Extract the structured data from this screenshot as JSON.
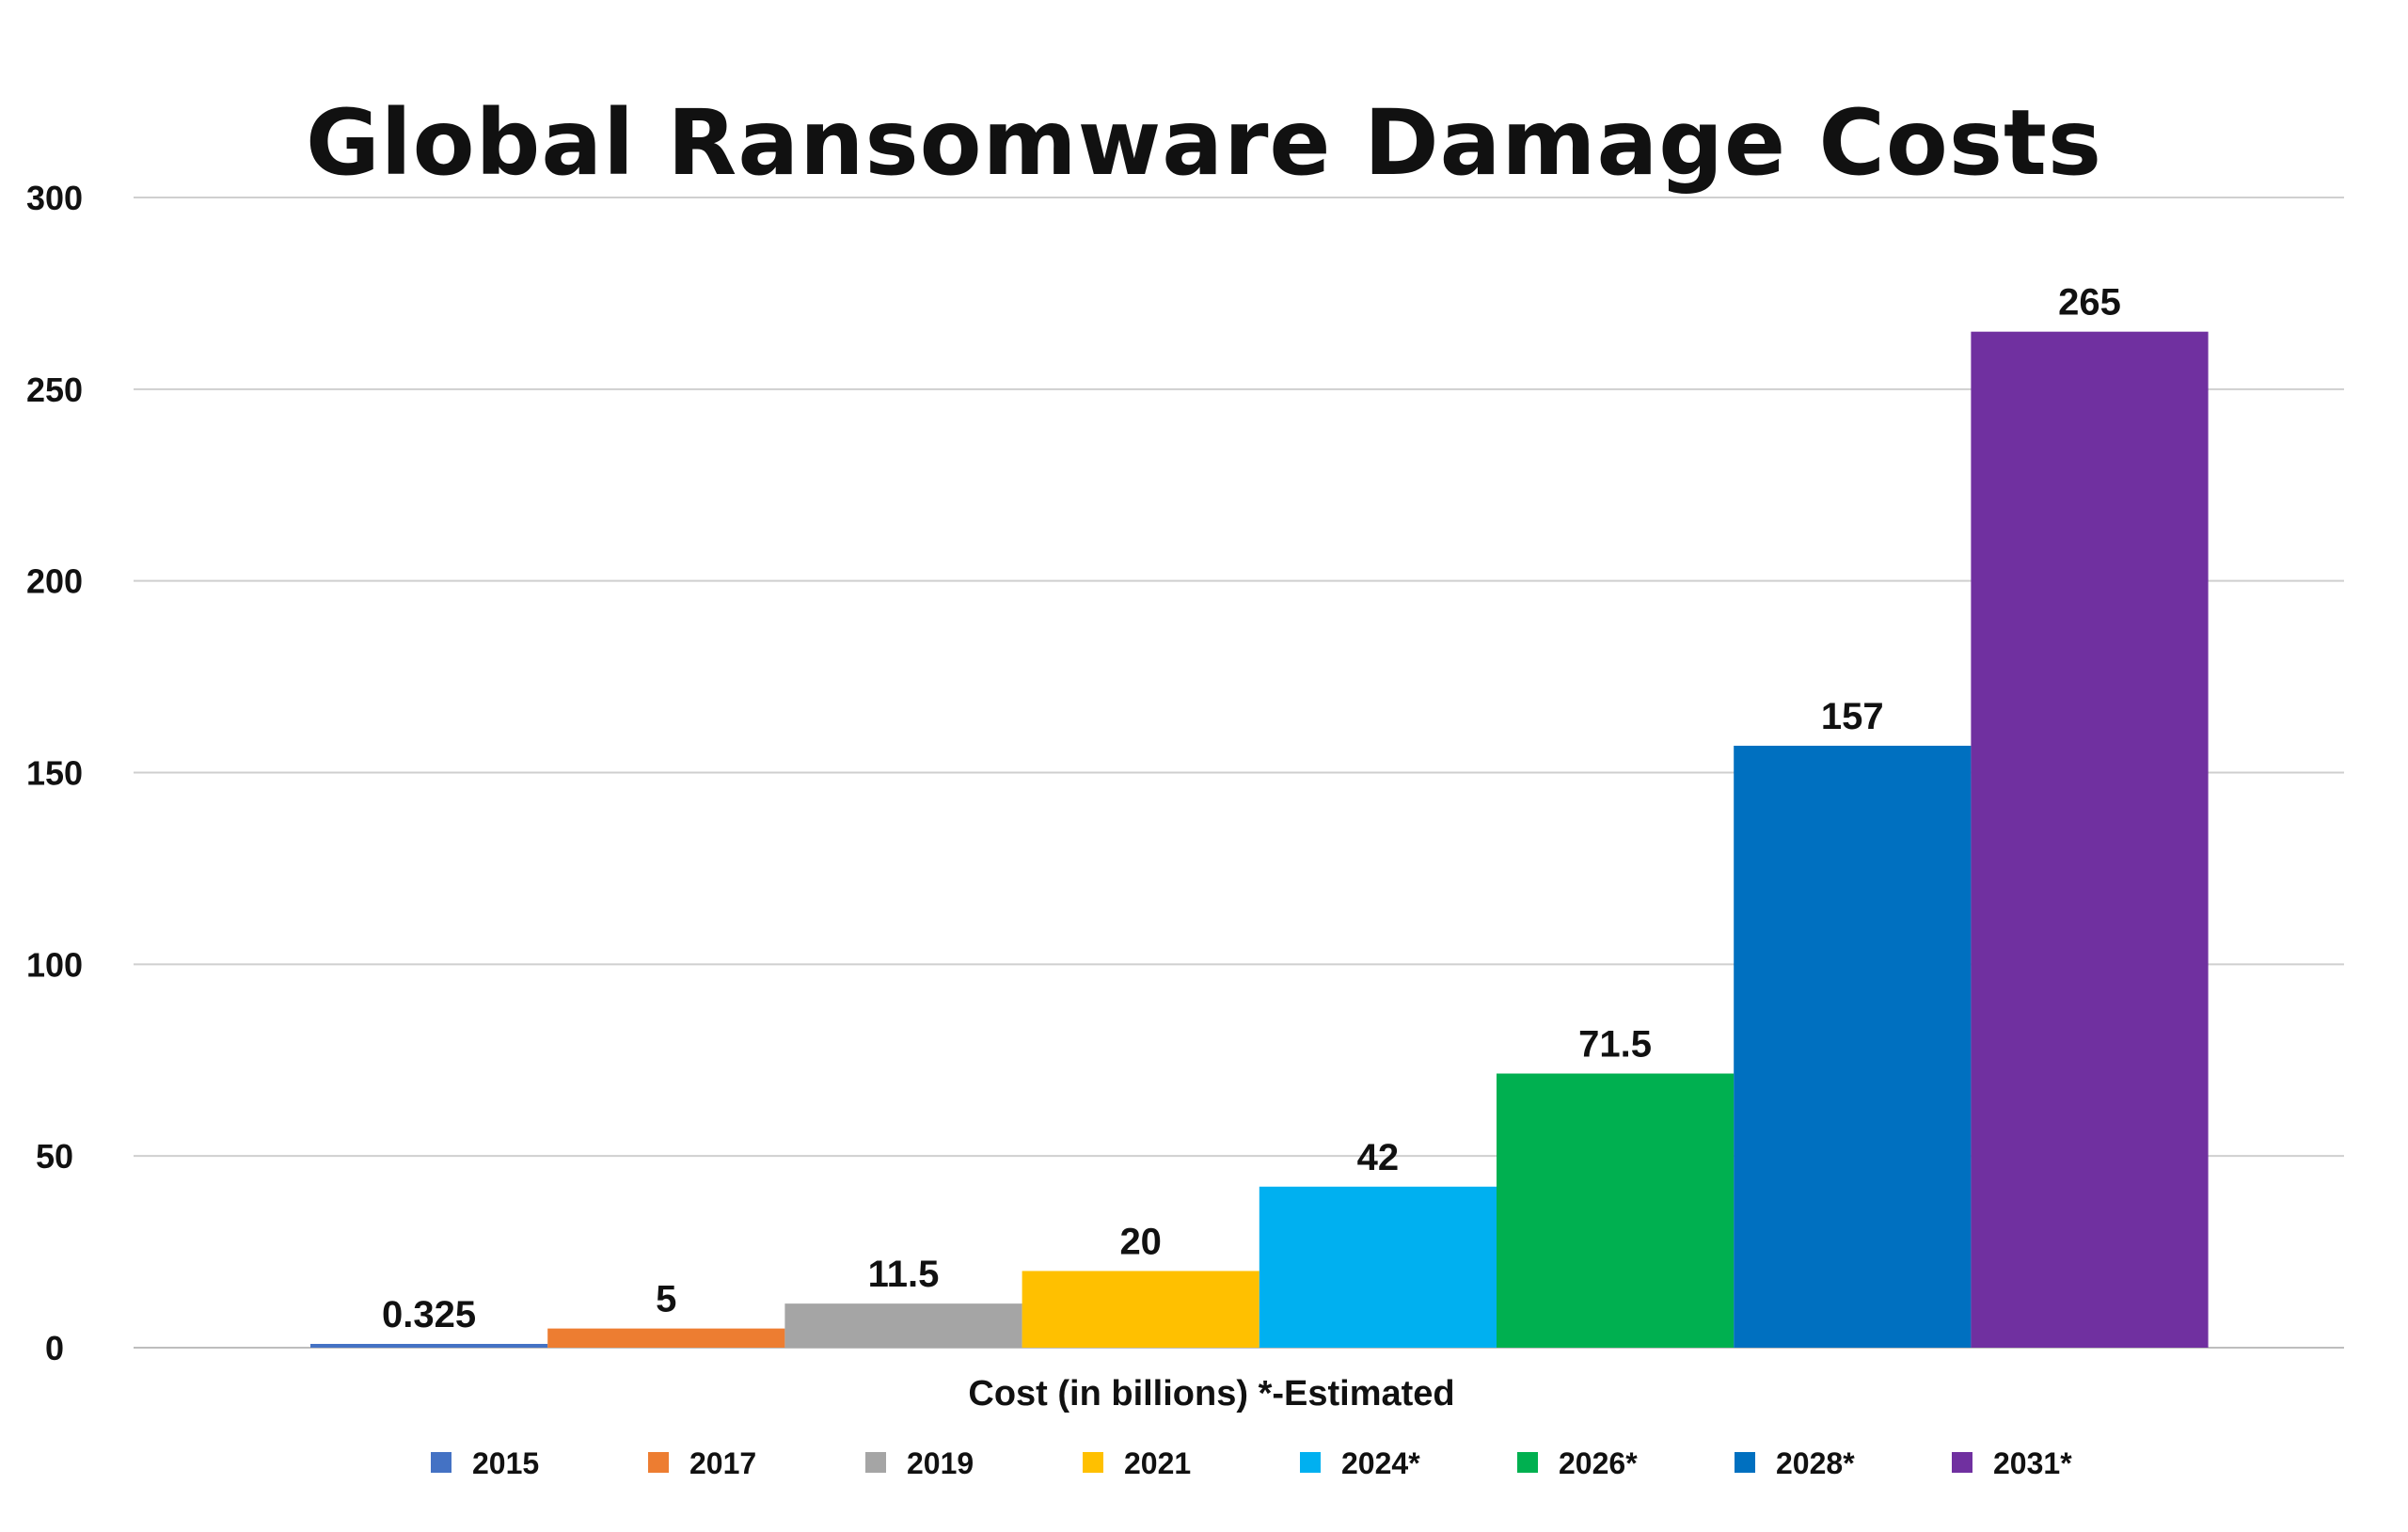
{
  "chart_data": {
    "type": "bar",
    "title": "Global Ransomware Damage Costs",
    "xlabel": "Cost (in billions) *-Estimated",
    "ylabel": "",
    "ylim": [
      0,
      300
    ],
    "yticks": [
      0,
      50,
      100,
      150,
      200,
      250,
      300
    ],
    "grid": true,
    "legend_position": "bottom",
    "categories": [
      "2015",
      "2017",
      "2019",
      "2021",
      "2024*",
      "2026*",
      "2028*",
      "2031*"
    ],
    "values": [
      0.325,
      5,
      11.5,
      20,
      42,
      71.5,
      157,
      265
    ],
    "data_labels": [
      "0.325",
      "5",
      "11.5",
      "20",
      "42",
      "71.5",
      "157",
      "265"
    ],
    "colors": [
      "#4472C4",
      "#ED7D31",
      "#A5A5A5",
      "#FFC000",
      "#00B0F0",
      "#00B050",
      "#0070C0",
      "#7030A0"
    ]
  }
}
